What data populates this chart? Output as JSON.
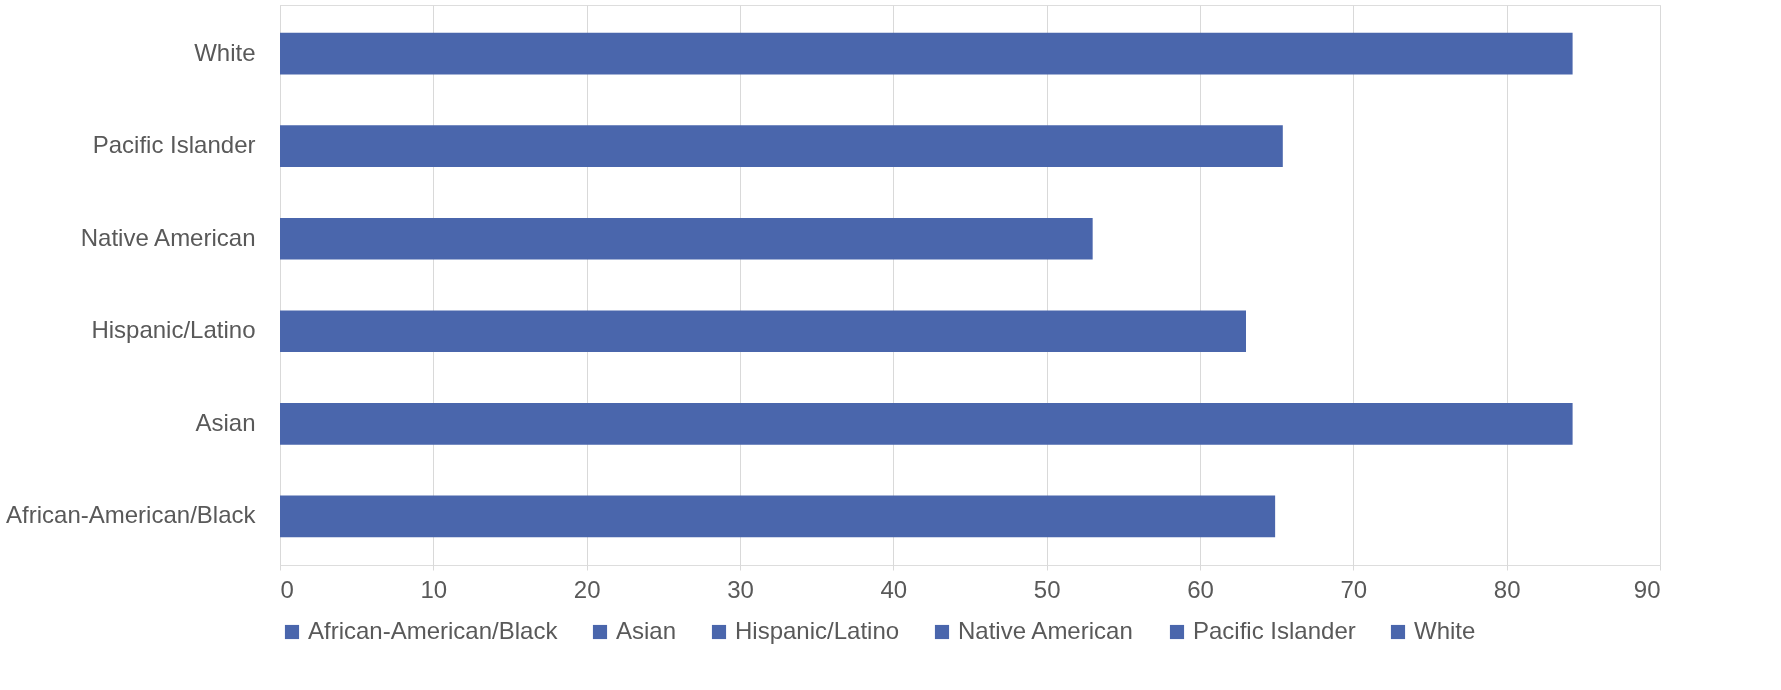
{
  "chart_data": {
    "type": "bar",
    "orientation": "horizontal",
    "categories": [
      "White",
      "Pacific Islander",
      "Native American",
      "Hispanic/Latino",
      "Asian",
      "African-American/Black"
    ],
    "series": [
      {
        "name": "African-American/Black",
        "color": "#4a66ac",
        "values": [
          null,
          null,
          null,
          null,
          null,
          64.9
        ]
      },
      {
        "name": "Asian",
        "color": "#4a66ac",
        "values": [
          null,
          null,
          null,
          null,
          84.3,
          null
        ]
      },
      {
        "name": "Hispanic/Latino",
        "color": "#4a66ac",
        "values": [
          null,
          null,
          null,
          63.0,
          null,
          null
        ]
      },
      {
        "name": "Native American",
        "color": "#4a66ac",
        "values": [
          null,
          null,
          53.0,
          null,
          null,
          null
        ]
      },
      {
        "name": "Pacific Islander",
        "color": "#4a66ac",
        "values": [
          null,
          65.4,
          null,
          null,
          null,
          null
        ]
      },
      {
        "name": "White",
        "color": "#4a66ac",
        "values": [
          84.3,
          null,
          null,
          null,
          null,
          null
        ]
      }
    ],
    "xlim": [
      0,
      90
    ],
    "xticks": [
      0,
      10,
      20,
      30,
      40,
      50,
      60,
      70,
      80,
      90
    ],
    "grid": "x",
    "legend": "bottom"
  }
}
